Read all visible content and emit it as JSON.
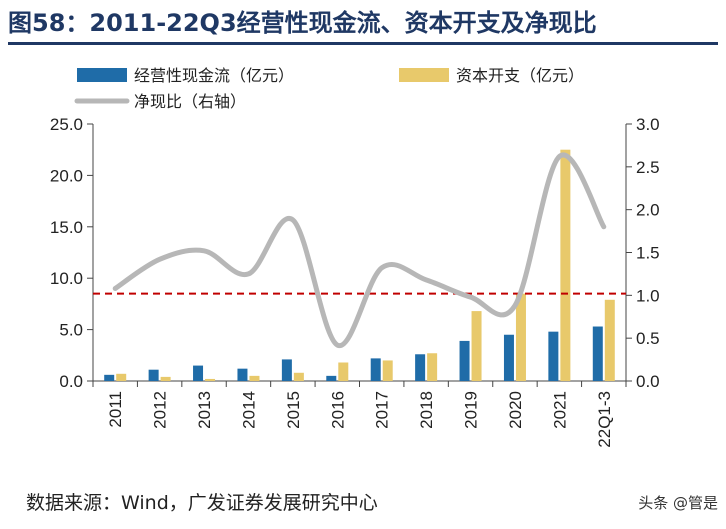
{
  "title": "图58：2011-22Q3经营性现金流、资本开支及净现比",
  "source": "数据来源：Wind，广发证券发展研究中心",
  "watermark": "头条 @管是",
  "colors": {
    "operating": "#1f6ca8",
    "capex": "#e8c96b",
    "ratio": "#b7b7b7",
    "refline": "#c00000"
  },
  "chart_data": {
    "type": "bar",
    "categories": [
      "2011",
      "2012",
      "2013",
      "2014",
      "2015",
      "2016",
      "2017",
      "2018",
      "2019",
      "2020",
      "2021",
      "22Q1-3"
    ],
    "series": [
      {
        "name": "经营性现金流（亿元）",
        "kind": "bar",
        "axis": "left",
        "values": [
          0.6,
          1.1,
          1.5,
          1.2,
          2.1,
          0.5,
          2.2,
          2.6,
          3.9,
          4.5,
          4.8,
          5.3
        ]
      },
      {
        "name": "资本开支（亿元）",
        "kind": "bar",
        "axis": "left",
        "values": [
          0.7,
          0.4,
          0.2,
          0.5,
          0.8,
          1.8,
          2.0,
          2.7,
          6.8,
          8.5,
          22.5,
          7.9
        ]
      },
      {
        "name": "净现比（右轴）",
        "kind": "line",
        "axis": "right",
        "values": [
          1.08,
          1.42,
          1.52,
          1.25,
          1.88,
          0.42,
          1.32,
          1.18,
          0.98,
          0.88,
          2.62,
          1.8
        ]
      }
    ],
    "reference_line": {
      "axis": "right",
      "value": 1.02,
      "style": "dashed"
    },
    "yleft": {
      "lim": [
        0,
        25
      ],
      "ticks": [
        "0.0",
        "5.0",
        "10.0",
        "15.0",
        "20.0",
        "25.0"
      ]
    },
    "yright": {
      "lim": [
        0,
        3
      ],
      "ticks": [
        "0.0",
        "0.5",
        "1.0",
        "1.5",
        "2.0",
        "2.5",
        "3.0"
      ]
    },
    "legend_position": "top-left"
  }
}
